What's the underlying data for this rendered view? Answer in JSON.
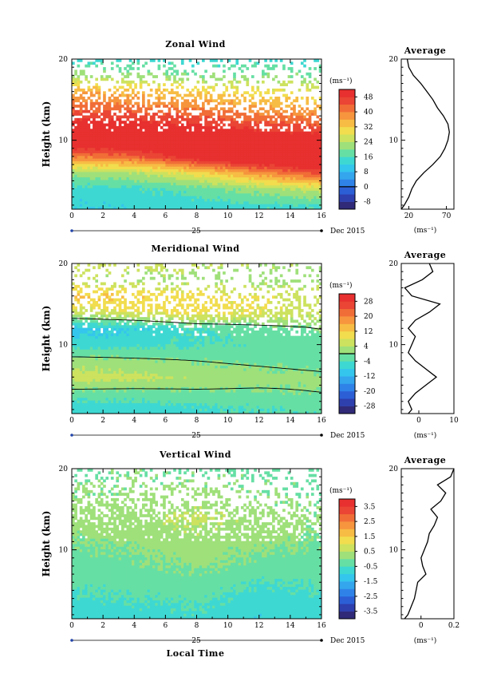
{
  "page": {
    "xlabel": "Local Time"
  },
  "panels": [
    {
      "key": "zonal",
      "title": "Zonal Wind",
      "ylabel": "Height (km)",
      "unit_label": "(ms⁻¹)",
      "colorbar_ticks": [
        "48",
        "40",
        "32",
        "24",
        "16",
        "8",
        "0",
        "-8"
      ],
      "day_label": "25",
      "date_label": "Dec 2015",
      "avg_title": "Average",
      "avg_xlabel": "(ms⁻¹)"
    },
    {
      "key": "meridional",
      "title": "Meridional Wind",
      "ylabel": "Height (km)",
      "unit_label": "(ms⁻¹)",
      "colorbar_ticks": [
        "28",
        "20",
        "12",
        "4",
        "-4",
        "-12",
        "-20",
        "-28"
      ],
      "day_label": "25",
      "date_label": "Dec 2015",
      "avg_title": "Average",
      "avg_xlabel": "(ms⁻¹)"
    },
    {
      "key": "vertical",
      "title": "Vertical Wind",
      "ylabel": "Height (km)",
      "unit_label": "(ms⁻¹)",
      "colorbar_ticks": [
        "3.5",
        "2.5",
        "1.5",
        "0.5",
        "-0.5",
        "-1.5",
        "-2.5",
        "-3.5"
      ],
      "day_label": "25",
      "date_label": "Dec 2015",
      "avg_title": "Average",
      "avg_xlabel": "(ms⁻¹)"
    }
  ],
  "chart_data": [
    {
      "type": "heatmap",
      "title": "Zonal Wind",
      "xlabel": "Local Time",
      "ylabel": "Height (km)",
      "xlim": [
        0,
        16
      ],
      "ylim": [
        1.5,
        20
      ],
      "x_ticks": [
        0,
        2,
        4,
        6,
        8,
        10,
        12,
        14,
        16
      ],
      "y_ticks": [
        10,
        20
      ],
      "colorbar": {
        "min": -12,
        "max": 52,
        "step": 4,
        "ticks": [
          48,
          40,
          32,
          24,
          16,
          8,
          0,
          -8
        ],
        "zero_contour": 0
      },
      "profile_heights_km": [
        2,
        4,
        6,
        8,
        10,
        12,
        14,
        16,
        18,
        20
      ],
      "profile_columns": [
        {
          "time_h": 0,
          "values": [
            12,
            14,
            22,
            40,
            56,
            50,
            43,
            36,
            22,
            14
          ]
        },
        {
          "time_h": 4,
          "values": [
            13,
            15,
            24,
            43,
            57,
            50,
            42,
            34,
            22,
            14
          ]
        },
        {
          "time_h": 8,
          "values": [
            14,
            18,
            30,
            52,
            55,
            48,
            40,
            32,
            20,
            14
          ]
        },
        {
          "time_h": 12,
          "values": [
            15,
            22,
            38,
            58,
            53,
            45,
            37,
            30,
            20,
            14
          ]
        },
        {
          "time_h": 16,
          "values": [
            16,
            26,
            46,
            60,
            52,
            44,
            36,
            28,
            20,
            14
          ]
        }
      ],
      "average_profile": {
        "title": "Average",
        "xlabel": "(ms⁻¹)",
        "xlim": [
          10,
          80
        ],
        "x_ticks": [
          20,
          70
        ],
        "y_ticks": [
          10,
          20
        ],
        "height_km": [
          1.5,
          2,
          3,
          4,
          5,
          6,
          7,
          8,
          9,
          10,
          11,
          12,
          13,
          14,
          15,
          16,
          17,
          18,
          19,
          20
        ],
        "values": [
          10,
          14,
          20,
          24,
          30,
          40,
          52,
          62,
          68,
          72,
          74,
          72,
          66,
          58,
          52,
          44,
          36,
          26,
          20,
          18
        ]
      }
    },
    {
      "type": "heatmap",
      "title": "Meridional Wind",
      "xlabel": "Local Time",
      "ylabel": "Height (km)",
      "xlim": [
        0,
        16
      ],
      "ylim": [
        1.5,
        20
      ],
      "x_ticks": [
        0,
        2,
        4,
        6,
        8,
        10,
        12,
        14,
        16
      ],
      "y_ticks": [
        10,
        20
      ],
      "colorbar": {
        "min": -32,
        "max": 32,
        "step": 4,
        "ticks": [
          28,
          20,
          12,
          4,
          -4,
          -12,
          -20,
          -28
        ],
        "zero_contour": 0
      },
      "profile_heights_km": [
        2,
        4,
        6,
        8,
        10,
        12,
        14,
        16,
        18,
        20
      ],
      "profile_columns": [
        {
          "time_h": 0,
          "values": [
            -7,
            -2,
            6,
            2,
            -6,
            -10,
            6,
            14,
            4,
            8
          ]
        },
        {
          "time_h": 4,
          "values": [
            -6,
            -2,
            5,
            1,
            -5,
            -8,
            8,
            12,
            3,
            6
          ]
        },
        {
          "time_h": 8,
          "values": [
            -5,
            -1,
            3,
            0,
            -4,
            -4,
            10,
            10,
            2,
            5
          ]
        },
        {
          "time_h": 12,
          "values": [
            -4,
            -1,
            2,
            -1,
            -3,
            -2,
            8,
            8,
            2,
            4
          ]
        },
        {
          "time_h": 16,
          "values": [
            -3,
            0,
            1,
            -2,
            -2,
            0,
            6,
            6,
            1,
            3
          ]
        }
      ],
      "average_profile": {
        "title": "Average",
        "xlabel": "(ms⁻¹)",
        "xlim": [
          -5,
          10
        ],
        "x_ticks": [
          0,
          10
        ],
        "y_ticks": [
          10,
          20
        ],
        "height_km": [
          1.5,
          2,
          3,
          4,
          5,
          6,
          7,
          8,
          9,
          10,
          11,
          12,
          13,
          14,
          15,
          16,
          17,
          18,
          19,
          20
        ],
        "values": [
          -3,
          -2,
          -3,
          -1,
          2,
          5,
          2,
          -1,
          -3,
          -2,
          -1,
          -3,
          -1,
          3,
          6,
          -2,
          -4,
          1,
          4,
          3
        ]
      }
    },
    {
      "type": "heatmap",
      "title": "Vertical Wind",
      "xlabel": "Local Time",
      "ylabel": "Height (km)",
      "xlim": [
        0,
        16
      ],
      "ylim": [
        1.5,
        20
      ],
      "x_ticks": [
        0,
        2,
        4,
        6,
        8,
        10,
        12,
        14,
        16
      ],
      "y_ticks": [
        10,
        20
      ],
      "colorbar": {
        "min": -4,
        "max": 4,
        "step": 0.5,
        "ticks": [
          3.5,
          2.5,
          1.5,
          0.5,
          -0.5,
          -1.5,
          -2.5,
          -3.5
        ],
        "zero_contour": null
      },
      "profile_heights_km": [
        2,
        4,
        6,
        8,
        10,
        12,
        14,
        16,
        18,
        20
      ],
      "profile_columns": [
        {
          "time_h": 0,
          "values": [
            -0.8,
            -0.6,
            -0.4,
            -0.2,
            -0.1,
            0.1,
            0.2,
            0.1,
            0.0,
            -0.2
          ]
        },
        {
          "time_h": 4,
          "values": [
            -0.7,
            -0.5,
            -0.3,
            -0.1,
            0.0,
            0.2,
            0.3,
            0.2,
            0.1,
            -0.1
          ]
        },
        {
          "time_h": 8,
          "values": [
            -0.6,
            -0.4,
            -0.2,
            0.1,
            0.2,
            0.4,
            0.6,
            0.3,
            0.1,
            -0.1
          ]
        },
        {
          "time_h": 12,
          "values": [
            -0.9,
            -0.7,
            -0.5,
            -0.2,
            0.0,
            0.2,
            0.3,
            0.1,
            0.0,
            -0.2
          ]
        },
        {
          "time_h": 16,
          "values": [
            -0.8,
            -0.6,
            -0.4,
            -0.3,
            -0.1,
            0.0,
            0.1,
            0.0,
            -0.1,
            -0.3
          ]
        }
      ],
      "average_profile": {
        "title": "Average",
        "xlabel": "(ms⁻¹)",
        "xlim": [
          -0.12,
          0.2
        ],
        "x_ticks": [
          0.0,
          0.2
        ],
        "y_ticks": [
          10,
          20
        ],
        "height_km": [
          1.5,
          2,
          3,
          4,
          5,
          6,
          7,
          8,
          9,
          10,
          11,
          12,
          13,
          14,
          15,
          16,
          17,
          18,
          19,
          20
        ],
        "values": [
          -0.1,
          -0.08,
          -0.06,
          -0.04,
          -0.03,
          -0.02,
          0.03,
          0.01,
          0.0,
          0.02,
          0.04,
          0.05,
          0.08,
          0.1,
          0.06,
          0.12,
          0.15,
          0.1,
          0.18,
          0.2
        ]
      }
    }
  ]
}
